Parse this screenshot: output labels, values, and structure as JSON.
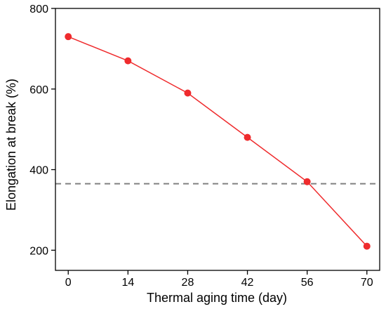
{
  "chart_data": {
    "type": "line",
    "title": "",
    "xlabel": "Thermal aging time (day)",
    "ylabel": "Elongation at break (%)",
    "xlim": [
      -3,
      73
    ],
    "ylim": [
      150,
      800
    ],
    "xticks": [
      0,
      14,
      28,
      42,
      56,
      70
    ],
    "yticks": [
      200,
      400,
      600,
      800
    ],
    "x_tick_labels": [
      "0",
      "14",
      "28",
      "42",
      "56",
      "70"
    ],
    "y_tick_labels": [
      "200",
      "400",
      "600",
      "800"
    ],
    "grid": false,
    "legend": "none",
    "series": [
      {
        "x": [
          0,
          14,
          28,
          42,
          56,
          70
        ],
        "y": [
          730,
          670,
          590,
          480,
          370,
          210
        ],
        "color": "#ef2b2d",
        "marker": "circle"
      }
    ],
    "reference_lines": [
      {
        "orientation": "horizontal",
        "y": 365,
        "style": "dashed",
        "color": "#808080"
      }
    ]
  }
}
